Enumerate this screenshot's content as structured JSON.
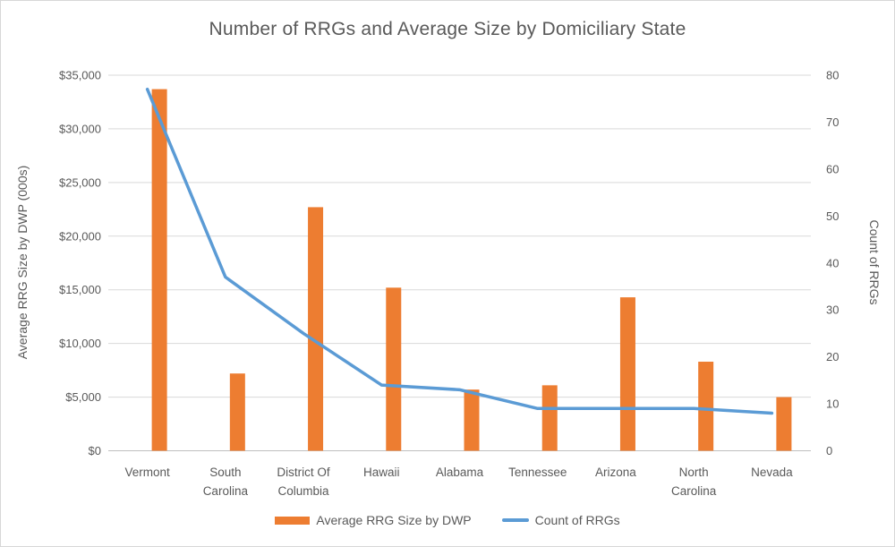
{
  "chart_data": {
    "type": "bar",
    "subtype": "combo-bar-line-dual-axis",
    "title": "Number of RRGs and Average Size by Domiciliary State",
    "categories": [
      "Vermont",
      "South Carolina",
      "District Of Columbia",
      "Hawaii",
      "Alabama",
      "Tennessee",
      "Arizona",
      "North Carolina",
      "Nevada"
    ],
    "series": [
      {
        "name": "Average RRG Size by DWP",
        "type": "bar",
        "axis": "left",
        "color": "#ED7D31",
        "values": [
          33700,
          7200,
          22700,
          15200,
          5700,
          6100,
          14300,
          8300,
          5000
        ]
      },
      {
        "name": "Count of RRGs",
        "type": "line",
        "axis": "right",
        "color": "#5B9BD5",
        "values": [
          77,
          37,
          25,
          14,
          13,
          9,
          9,
          9,
          8
        ]
      }
    ],
    "left_axis": {
      "title": "Average RRG Size by DWP (000s)",
      "min": 0,
      "max": 35000,
      "step": 5000,
      "tick_labels": [
        "$35,000",
        "$30,000",
        "$25,000",
        "$20,000",
        "$15,000",
        "$10,000",
        "$5,000",
        "$0"
      ]
    },
    "right_axis": {
      "title": "Count of RRGs",
      "min": 0,
      "max": 80,
      "step": 10,
      "tick_labels": [
        "80",
        "70",
        "60",
        "50",
        "40",
        "30",
        "20",
        "10",
        "0"
      ]
    },
    "legend_position": "bottom",
    "grid": true
  },
  "colors": {
    "bar": "#ED7D31",
    "line": "#5B9BD5",
    "gridline": "#D9D9D9",
    "axis_line": "#BFBFBF",
    "text": "#595959",
    "frame_border": "#D7D7D7",
    "background": "#FFFFFF"
  }
}
